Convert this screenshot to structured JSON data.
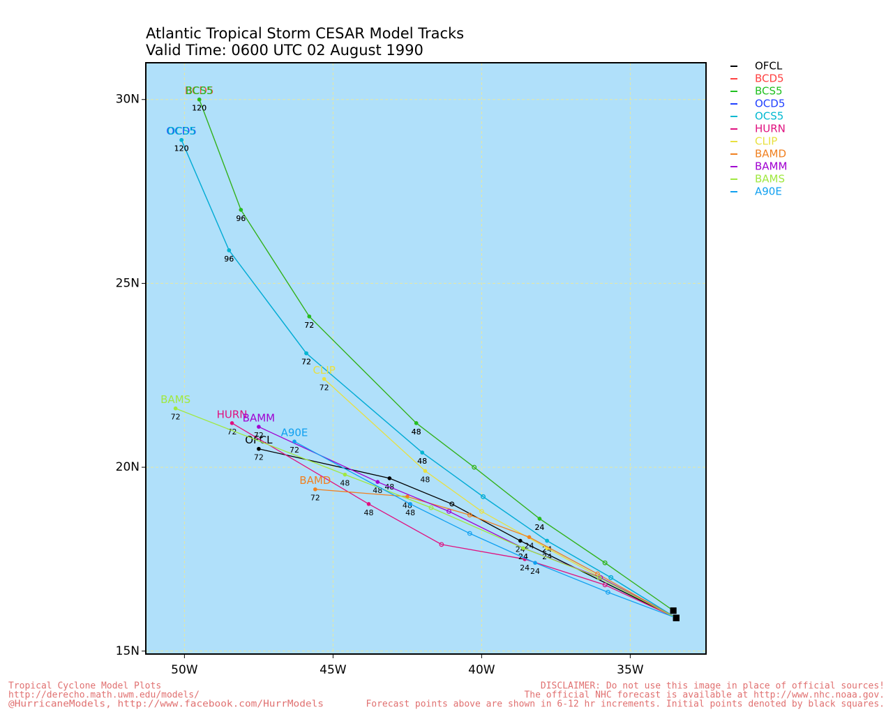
{
  "chart_data": {
    "type": "track",
    "title": "Atlantic Tropical Storm CESAR Model Tracks",
    "subtitle": "Valid Time: 0600 UTC 02 August 1990",
    "xlim": [
      51.3,
      32.45
    ],
    "ylim": [
      14.92,
      31.0
    ],
    "xticks": [
      {
        "value": 50,
        "label": "50W"
      },
      {
        "value": 45,
        "label": "45W"
      },
      {
        "value": 40,
        "label": "40W"
      },
      {
        "value": 35,
        "label": "35W"
      }
    ],
    "yticks": [
      {
        "value": 15,
        "label": "15N"
      },
      {
        "value": 20,
        "label": "20N"
      },
      {
        "value": 25,
        "label": "25N"
      },
      {
        "value": 30,
        "label": "30N"
      }
    ],
    "grid": true,
    "series": [
      {
        "name": "OFCL",
        "color": "#000000",
        "taus": [
          0,
          24,
          36,
          48,
          72
        ],
        "lon": [
          33.45,
          38.7,
          41.0,
          43.1,
          47.5
        ],
        "lat": [
          15.9,
          18.0,
          19.0,
          19.7,
          20.5
        ]
      },
      {
        "name": "BCD5",
        "color": "#ff4040",
        "taus": [
          0,
          12,
          24,
          36,
          48,
          72,
          96,
          120
        ],
        "lon": [
          33.55,
          35.85,
          38.05,
          40.25,
          42.2,
          45.8,
          48.1,
          49.5
        ],
        "lat": [
          16.1,
          17.4,
          18.6,
          20.0,
          21.2,
          24.1,
          27.0,
          30.0
        ]
      },
      {
        "name": "BCS5",
        "color": "#20c020",
        "taus": [
          0,
          12,
          24,
          36,
          48,
          72,
          96,
          120
        ],
        "lon": [
          33.55,
          35.85,
          38.05,
          40.25,
          42.2,
          45.8,
          48.1,
          49.5
        ],
        "lat": [
          16.1,
          17.4,
          18.6,
          20.0,
          21.2,
          24.1,
          27.0,
          30.0
        ]
      },
      {
        "name": "OCD5",
        "color": "#2040ff",
        "taus": [
          0,
          12,
          24,
          36,
          48,
          72,
          96,
          120
        ],
        "lon": [
          33.45,
          35.65,
          37.8,
          39.95,
          42.0,
          45.9,
          48.5,
          50.1
        ],
        "lat": [
          15.9,
          17.0,
          18.0,
          19.2,
          20.4,
          23.1,
          25.9,
          28.9
        ]
      },
      {
        "name": "OCS5",
        "color": "#00b8d0",
        "taus": [
          0,
          12,
          24,
          36,
          48,
          72,
          96,
          120
        ],
        "lon": [
          33.45,
          35.65,
          37.8,
          39.95,
          42.0,
          45.9,
          48.5,
          50.1
        ],
        "lat": [
          15.9,
          17.0,
          18.0,
          19.2,
          20.4,
          23.1,
          25.9,
          28.9
        ]
      },
      {
        "name": "HURN",
        "color": "#e0107f",
        "taus": [
          0,
          12,
          24,
          36,
          48,
          72
        ],
        "lon": [
          33.45,
          35.85,
          38.55,
          41.35,
          43.8,
          48.4
        ],
        "lat": [
          15.9,
          16.8,
          17.5,
          17.9,
          19.0,
          21.2
        ]
      },
      {
        "name": "CLIP",
        "color": "#e8e040",
        "taus": [
          0,
          12,
          24,
          36,
          48,
          72
        ],
        "lon": [
          33.45,
          36.0,
          37.8,
          40.0,
          41.9,
          45.3
        ],
        "lat": [
          15.9,
          17.0,
          17.8,
          18.8,
          19.9,
          22.4
        ]
      },
      {
        "name": "BAMD",
        "color": "#f08020",
        "taus": [
          0,
          12,
          24,
          36,
          48,
          72
        ],
        "lon": [
          33.45,
          36.1,
          38.4,
          40.4,
          42.5,
          45.6
        ],
        "lat": [
          15.9,
          17.1,
          18.1,
          18.7,
          19.2,
          19.4
        ]
      },
      {
        "name": "BAMM",
        "color": "#a000d0",
        "taus": [
          0,
          12,
          24,
          36,
          48,
          72
        ],
        "lon": [
          33.45,
          36.0,
          38.6,
          41.1,
          43.5,
          47.5
        ],
        "lat": [
          15.9,
          17.0,
          17.8,
          18.8,
          19.6,
          21.1
        ]
      },
      {
        "name": "BAMS",
        "color": "#a0e840",
        "taus": [
          0,
          12,
          24,
          36,
          48,
          72
        ],
        "lon": [
          33.45,
          36.05,
          38.6,
          41.7,
          44.6,
          50.3
        ],
        "lat": [
          15.9,
          17.0,
          17.8,
          18.9,
          19.8,
          21.6
        ]
      },
      {
        "name": "A90E",
        "color": "#10a0f0",
        "taus": [
          0,
          12,
          24,
          36,
          48,
          72
        ],
        "lon": [
          33.45,
          35.75,
          38.2,
          40.4,
          42.4,
          46.3
        ],
        "lat": [
          15.9,
          16.6,
          17.4,
          18.2,
          19.0,
          20.7
        ]
      }
    ],
    "footer_left": [
      "Tropical Cyclone Model Plots",
      "http://derecho.math.uwm.edu/models/",
      "@HurricaneModels, http://www.facebook.com/HurrModels"
    ],
    "footer_right": [
      "DISCLAIMER: Do not use this image in place of official sources!",
      "The official NHC forecast is available at http://www.nhc.noaa.gov.",
      "Forecast points above are shown in 6-12 hr increments. Initial points denoted by black squares."
    ]
  }
}
